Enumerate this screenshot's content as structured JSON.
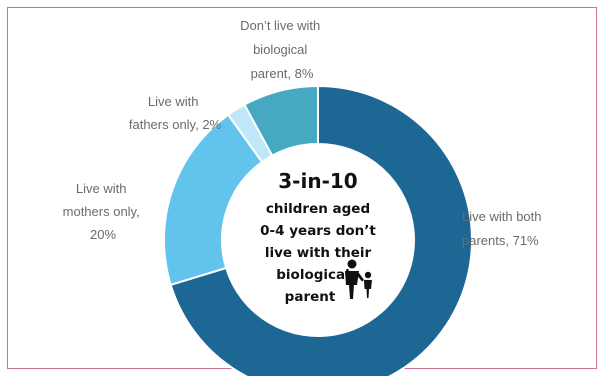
{
  "chart_data": {
    "type": "pie",
    "style": "donut",
    "categories": [
      "Live with both parents",
      "Live with mothers only",
      "Live with fathers only",
      "Don’t live with biological parent"
    ],
    "values": [
      71,
      20,
      2,
      8
    ],
    "colors": [
      "#1d6795",
      "#62c4ec",
      "#bfe7f7",
      "#47a8c2"
    ],
    "labels": [
      [
        "Live with both",
        "parents, 71%"
      ],
      [
        "Live with",
        "mothers only,",
        "20%"
      ],
      [
        "Live with",
        "fathers only, 2%"
      ],
      [
        "Don’t live with",
        "biological",
        "parent, 8%"
      ]
    ],
    "center_text": {
      "headline": "3-in-10",
      "lines": [
        "children aged",
        "0-4 years don’t",
        "live with their",
        "biological",
        "parent"
      ]
    },
    "center_icon": "parent-child-icon"
  }
}
